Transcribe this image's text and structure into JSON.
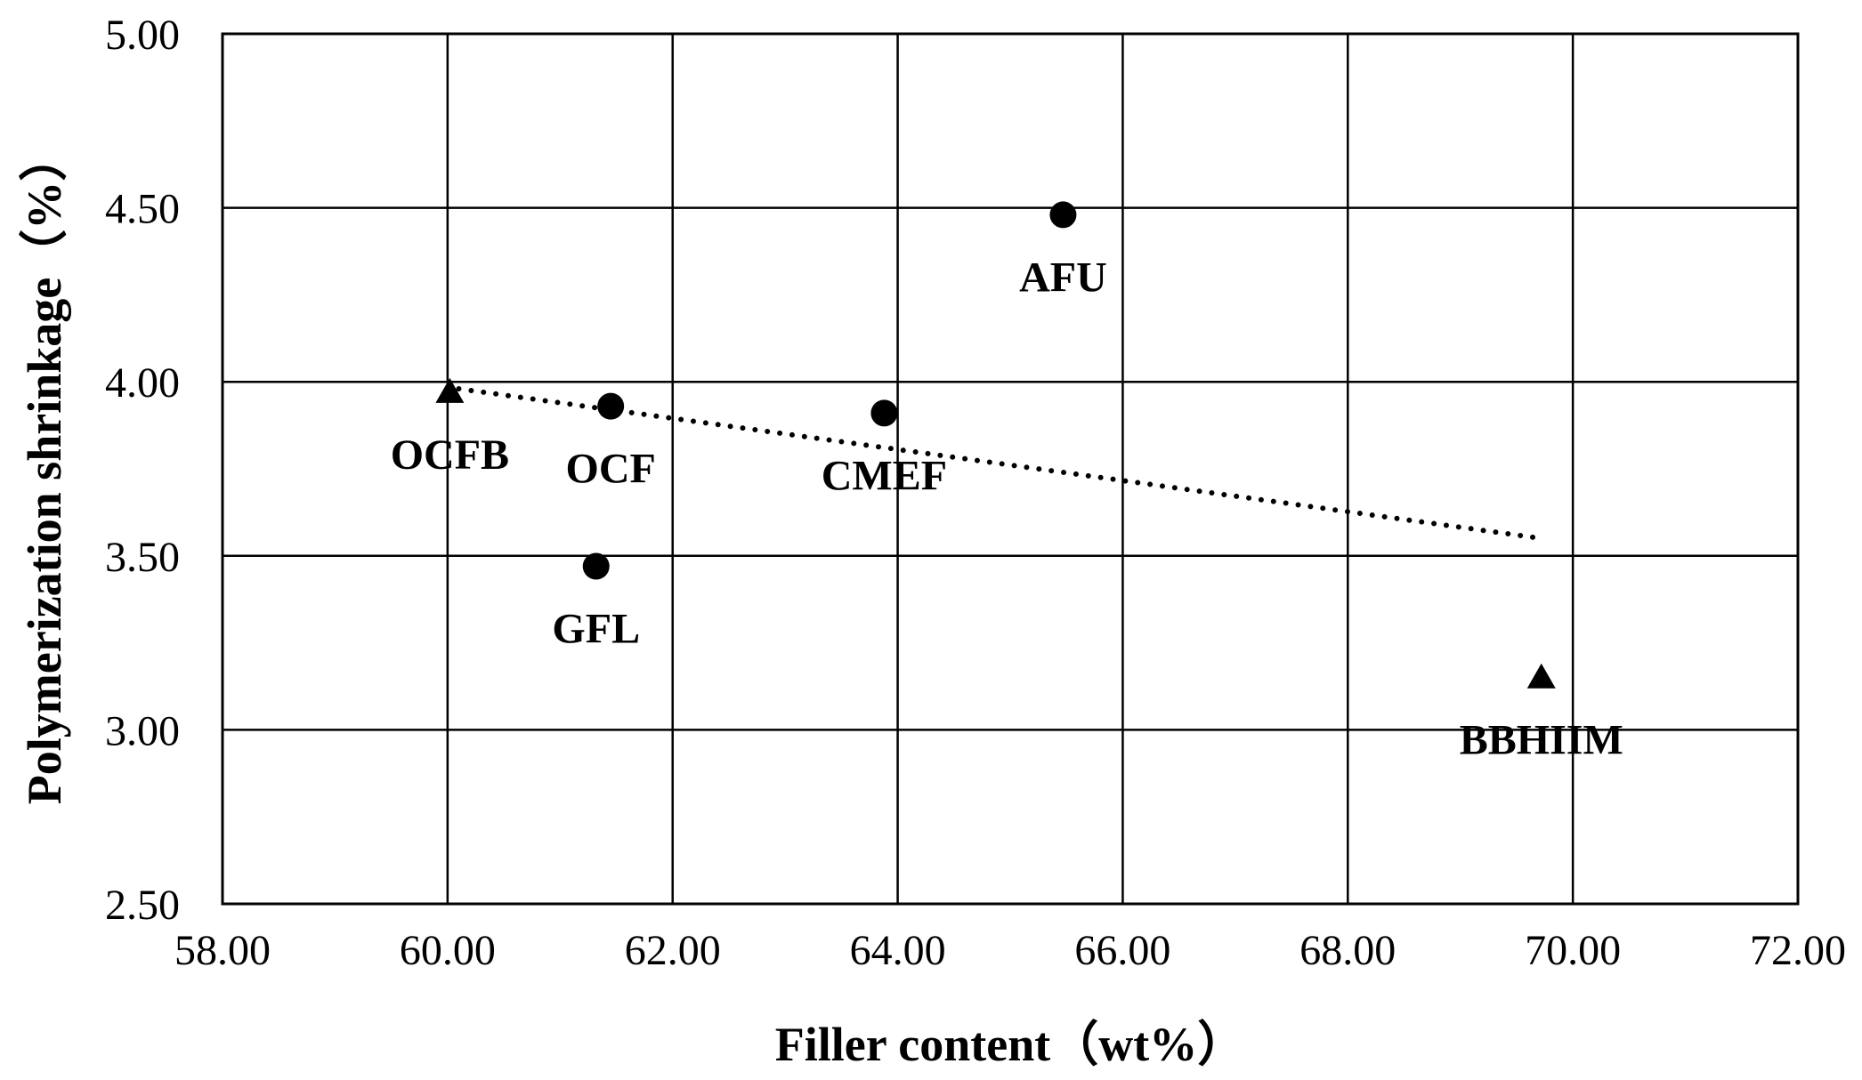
{
  "chart_data": {
    "type": "scatter",
    "title": "",
    "xlabel": "Filler content（wt%）",
    "ylabel": "Polymerization shrinkage（%）",
    "xlim": [
      58,
      72
    ],
    "ylim": [
      2.5,
      5.0
    ],
    "x_ticks": [
      "58.00",
      "60.00",
      "62.00",
      "64.00",
      "66.00",
      "68.00",
      "70.00",
      "72.00"
    ],
    "y_ticks": [
      "2.50",
      "3.00",
      "3.50",
      "4.00",
      "4.50",
      "5.00"
    ],
    "grid": true,
    "legend": "none",
    "points": [
      {
        "label": "OCFB",
        "x": 60.02,
        "y": 3.97,
        "marker": "triangle"
      },
      {
        "label": "OCF",
        "x": 61.45,
        "y": 3.93,
        "marker": "circle"
      },
      {
        "label": "GFL",
        "x": 61.32,
        "y": 3.47,
        "marker": "circle"
      },
      {
        "label": "CMEF",
        "x": 63.88,
        "y": 3.91,
        "marker": "circle"
      },
      {
        "label": "AFU",
        "x": 65.47,
        "y": 4.48,
        "marker": "circle"
      },
      {
        "label": "BBHIIM",
        "x": 69.72,
        "y": 3.15,
        "marker": "triangle"
      }
    ],
    "trendline": {
      "style": "dotted",
      "from": {
        "x": 60.1,
        "y": 3.98
      },
      "to": {
        "x": 69.72,
        "y": 3.55
      }
    },
    "colors": {
      "marker": "#000000",
      "grid": "#000000",
      "background": "#ffffff"
    }
  }
}
